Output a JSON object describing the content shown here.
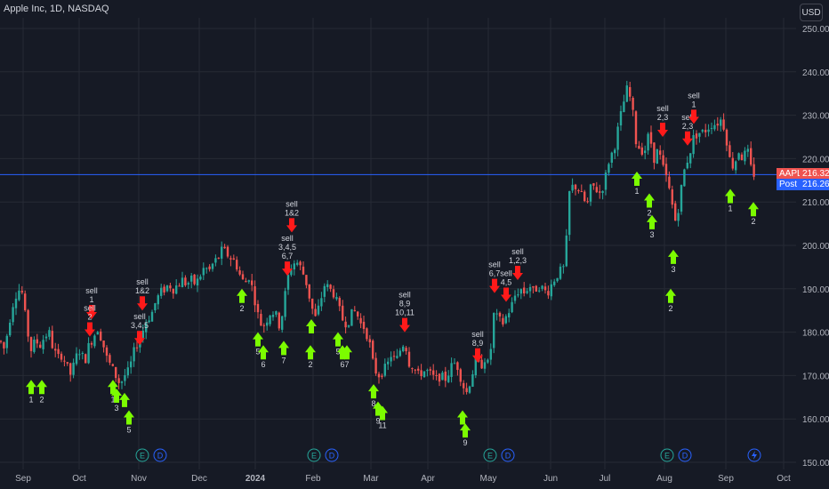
{
  "header": {
    "title": "Apple Inc, 1D, NASDAQ",
    "currency": "USD"
  },
  "colors": {
    "up": "#26a69a",
    "down": "#ef5350",
    "grid": "#262a35",
    "bg": "#161a25",
    "buy": "#7cfc00",
    "sell": "#ff1a1a",
    "price_line": "#2962ff",
    "event_e": "#26a69a",
    "event_d": "#2962ff"
  },
  "price_tags": {
    "last_label": "AAPL",
    "last_value": "216.32",
    "post_label": "Post",
    "post_value": "216.26"
  },
  "chart_data": {
    "type": "candlestick",
    "title": "Apple Inc, 1D, NASDAQ",
    "y_ticks": [
      "150.00",
      "160.00",
      "170.00",
      "180.00",
      "190.00",
      "200.00",
      "210.00",
      "220.00",
      "230.00",
      "240.00",
      "250.00"
    ],
    "x_ticks": [
      "Sep",
      "Oct",
      "Nov",
      "Dec",
      "2024",
      "Feb",
      "Mar",
      "Apr",
      "May",
      "Jun",
      "Jul",
      "Aug",
      "Sep",
      "Oct"
    ],
    "ylim": [
      150,
      250
    ],
    "last_price": 216.32,
    "post_price": 216.26,
    "trend": [
      [
        0,
        178
      ],
      [
        5,
        176
      ],
      [
        10,
        182
      ],
      [
        15,
        187
      ],
      [
        20,
        190
      ],
      [
        25,
        189
      ],
      [
        30,
        181
      ],
      [
        35,
        176
      ],
      [
        40,
        178
      ],
      [
        45,
        177
      ],
      [
        50,
        179
      ],
      [
        55,
        180
      ],
      [
        60,
        176
      ],
      [
        65,
        174
      ],
      [
        70,
        175
      ],
      [
        75,
        172
      ],
      [
        80,
        170
      ],
      [
        85,
        174
      ],
      [
        90,
        176
      ],
      [
        95,
        173
      ],
      [
        100,
        177
      ],
      [
        105,
        179
      ],
      [
        110,
        181
      ],
      [
        115,
        178
      ],
      [
        120,
        174
      ],
      [
        125,
        172
      ],
      [
        130,
        170
      ],
      [
        135,
        168
      ],
      [
        140,
        170
      ],
      [
        145,
        171
      ],
      [
        150,
        175
      ],
      [
        155,
        178
      ],
      [
        160,
        180
      ],
      [
        165,
        183
      ],
      [
        170,
        184
      ],
      [
        175,
        187
      ],
      [
        180,
        189
      ],
      [
        185,
        190
      ],
      [
        190,
        191
      ],
      [
        195,
        190
      ],
      [
        200,
        191
      ],
      [
        205,
        192
      ],
      [
        210,
        191
      ],
      [
        215,
        192
      ],
      [
        220,
        191
      ],
      [
        225,
        193
      ],
      [
        230,
        195
      ],
      [
        235,
        194
      ],
      [
        240,
        196
      ],
      [
        245,
        197
      ],
      [
        250,
        199
      ],
      [
        255,
        198
      ],
      [
        260,
        197
      ],
      [
        265,
        196
      ],
      [
        270,
        193
      ],
      [
        275,
        191
      ],
      [
        280,
        193
      ],
      [
        285,
        189
      ],
      [
        290,
        184
      ],
      [
        295,
        181
      ],
      [
        300,
        183
      ],
      [
        305,
        185
      ],
      [
        310,
        184
      ],
      [
        315,
        181
      ],
      [
        320,
        188
      ],
      [
        325,
        194
      ],
      [
        330,
        196
      ],
      [
        335,
        196
      ],
      [
        340,
        194
      ],
      [
        345,
        191
      ],
      [
        350,
        186
      ],
      [
        355,
        183
      ],
      [
        360,
        187
      ],
      [
        365,
        191
      ],
      [
        370,
        190
      ],
      [
        375,
        189
      ],
      [
        380,
        186
      ],
      [
        385,
        183
      ],
      [
        390,
        182
      ],
      [
        395,
        184
      ],
      [
        400,
        185
      ],
      [
        405,
        182
      ],
      [
        410,
        181
      ],
      [
        415,
        178
      ],
      [
        420,
        172
      ],
      [
        425,
        170
      ],
      [
        430,
        171
      ],
      [
        435,
        172
      ],
      [
        440,
        175
      ],
      [
        445,
        173
      ],
      [
        450,
        176
      ],
      [
        455,
        178
      ],
      [
        460,
        173
      ],
      [
        465,
        172
      ],
      [
        470,
        170
      ],
      [
        475,
        171
      ],
      [
        480,
        171
      ],
      [
        485,
        170
      ],
      [
        490,
        169
      ],
      [
        495,
        170
      ],
      [
        500,
        169
      ],
      [
        505,
        171
      ],
      [
        510,
        173
      ],
      [
        515,
        172
      ],
      [
        520,
        168
      ],
      [
        525,
        166
      ],
      [
        530,
        170
      ],
      [
        535,
        173
      ],
      [
        540,
        172
      ],
      [
        545,
        174
      ],
      [
        550,
        172
      ],
      [
        555,
        184
      ],
      [
        560,
        183
      ],
      [
        565,
        182
      ],
      [
        570,
        184
      ],
      [
        575,
        186
      ],
      [
        580,
        189
      ],
      [
        585,
        190
      ],
      [
        590,
        189
      ],
      [
        595,
        191
      ],
      [
        600,
        189
      ],
      [
        605,
        191
      ],
      [
        610,
        190
      ],
      [
        615,
        189
      ],
      [
        620,
        191
      ],
      [
        625,
        193
      ],
      [
        630,
        194
      ],
      [
        635,
        195
      ],
      [
        640,
        212
      ],
      [
        645,
        214
      ],
      [
        650,
        213
      ],
      [
        655,
        211
      ],
      [
        660,
        209
      ],
      [
        665,
        214
      ],
      [
        670,
        213
      ],
      [
        675,
        212
      ],
      [
        680,
        215
      ],
      [
        685,
        220
      ],
      [
        690,
        222
      ],
      [
        695,
        227
      ],
      [
        700,
        232
      ],
      [
        705,
        236
      ],
      [
        710,
        233
      ],
      [
        715,
        224
      ],
      [
        720,
        222
      ],
      [
        725,
        222
      ],
      [
        730,
        226
      ],
      [
        735,
        220
      ],
      [
        740,
        222
      ],
      [
        745,
        218
      ],
      [
        750,
        215
      ],
      [
        755,
        210
      ],
      [
        760,
        205
      ],
      [
        765,
        212
      ],
      [
        770,
        218
      ],
      [
        775,
        221
      ],
      [
        780,
        225
      ],
      [
        785,
        226
      ],
      [
        790,
        226
      ],
      [
        795,
        227
      ],
      [
        800,
        228
      ],
      [
        805,
        228
      ],
      [
        810,
        229
      ],
      [
        815,
        227
      ],
      [
        820,
        220
      ],
      [
        825,
        218
      ],
      [
        830,
        222
      ],
      [
        835,
        220
      ],
      [
        840,
        222
      ],
      [
        845,
        217
      ],
      [
        850,
        216
      ]
    ],
    "buy_signals": [
      {
        "x": 35,
        "y": 169,
        "label": "1"
      },
      {
        "x": 47,
        "y": 169,
        "label": "2"
      },
      {
        "x": 127,
        "y": 169,
        "label": "1"
      },
      {
        "x": 131,
        "y": 167,
        "label": "3"
      },
      {
        "x": 145,
        "y": 162,
        "label": "5"
      },
      {
        "x": 140,
        "y": 166,
        "label": ""
      },
      {
        "x": 272,
        "y": 190,
        "label": "2"
      },
      {
        "x": 290,
        "y": 180,
        "label": "5"
      },
      {
        "x": 296,
        "y": 177,
        "label": "6"
      },
      {
        "x": 319,
        "y": 178,
        "label": "7"
      },
      {
        "x": 349,
        "y": 177,
        "label": "2"
      },
      {
        "x": 350,
        "y": 183,
        "label": ""
      },
      {
        "x": 380,
        "y": 180,
        "label": "5"
      },
      {
        "x": 385,
        "y": 177,
        "label": "6"
      },
      {
        "x": 390,
        "y": 177,
        "label": "7"
      },
      {
        "x": 420,
        "y": 168,
        "label": "8"
      },
      {
        "x": 425,
        "y": 164,
        "label": "9"
      },
      {
        "x": 430,
        "y": 163,
        "label": "11"
      },
      {
        "x": 520,
        "y": 162,
        "label": ""
      },
      {
        "x": 523,
        "y": 159,
        "label": "9"
      },
      {
        "x": 716,
        "y": 217,
        "label": "1"
      },
      {
        "x": 730,
        "y": 212,
        "label": "2"
      },
      {
        "x": 733,
        "y": 207,
        "label": "3"
      },
      {
        "x": 757,
        "y": 199,
        "label": "3"
      },
      {
        "x": 754,
        "y": 190,
        "label": "2"
      },
      {
        "x": 821,
        "y": 213,
        "label": "1"
      },
      {
        "x": 847,
        "y": 210,
        "label": "2"
      }
    ],
    "sell_signals": [
      {
        "x": 103,
        "y": 183,
        "label": "sell 1"
      },
      {
        "x": 101,
        "y": 179,
        "label": "sell 2"
      },
      {
        "x": 160,
        "y": 185,
        "label": "sell 1&2"
      },
      {
        "x": 157,
        "y": 177,
        "label": "sell 3,4,5"
      },
      {
        "x": 328,
        "y": 203,
        "label": "sell 1&2"
      },
      {
        "x": 323,
        "y": 193,
        "label": "sell 3,4,5 6,7"
      },
      {
        "x": 455,
        "y": 180,
        "label": "sell 8,9 10,11"
      },
      {
        "x": 537,
        "y": 173,
        "label": "sell 8,9"
      },
      {
        "x": 556,
        "y": 189,
        "label": "sell 6,7"
      },
      {
        "x": 569,
        "y": 187,
        "label": "sell 4,5"
      },
      {
        "x": 582,
        "y": 192,
        "label": "sell 1,2,3"
      },
      {
        "x": 745,
        "y": 225,
        "label": "sell 2,3"
      },
      {
        "x": 773,
        "y": 223,
        "label": "sell 2,3"
      },
      {
        "x": 780,
        "y": 228,
        "label": "sell 1"
      }
    ],
    "events": [
      {
        "x": 160,
        "type": "E"
      },
      {
        "x": 180,
        "type": "D"
      },
      {
        "x": 353,
        "type": "E"
      },
      {
        "x": 373,
        "type": "D"
      },
      {
        "x": 551,
        "type": "E"
      },
      {
        "x": 571,
        "type": "D"
      },
      {
        "x": 750,
        "type": "E"
      },
      {
        "x": 770,
        "type": "D"
      },
      {
        "x": 848,
        "type": "flash"
      }
    ]
  }
}
